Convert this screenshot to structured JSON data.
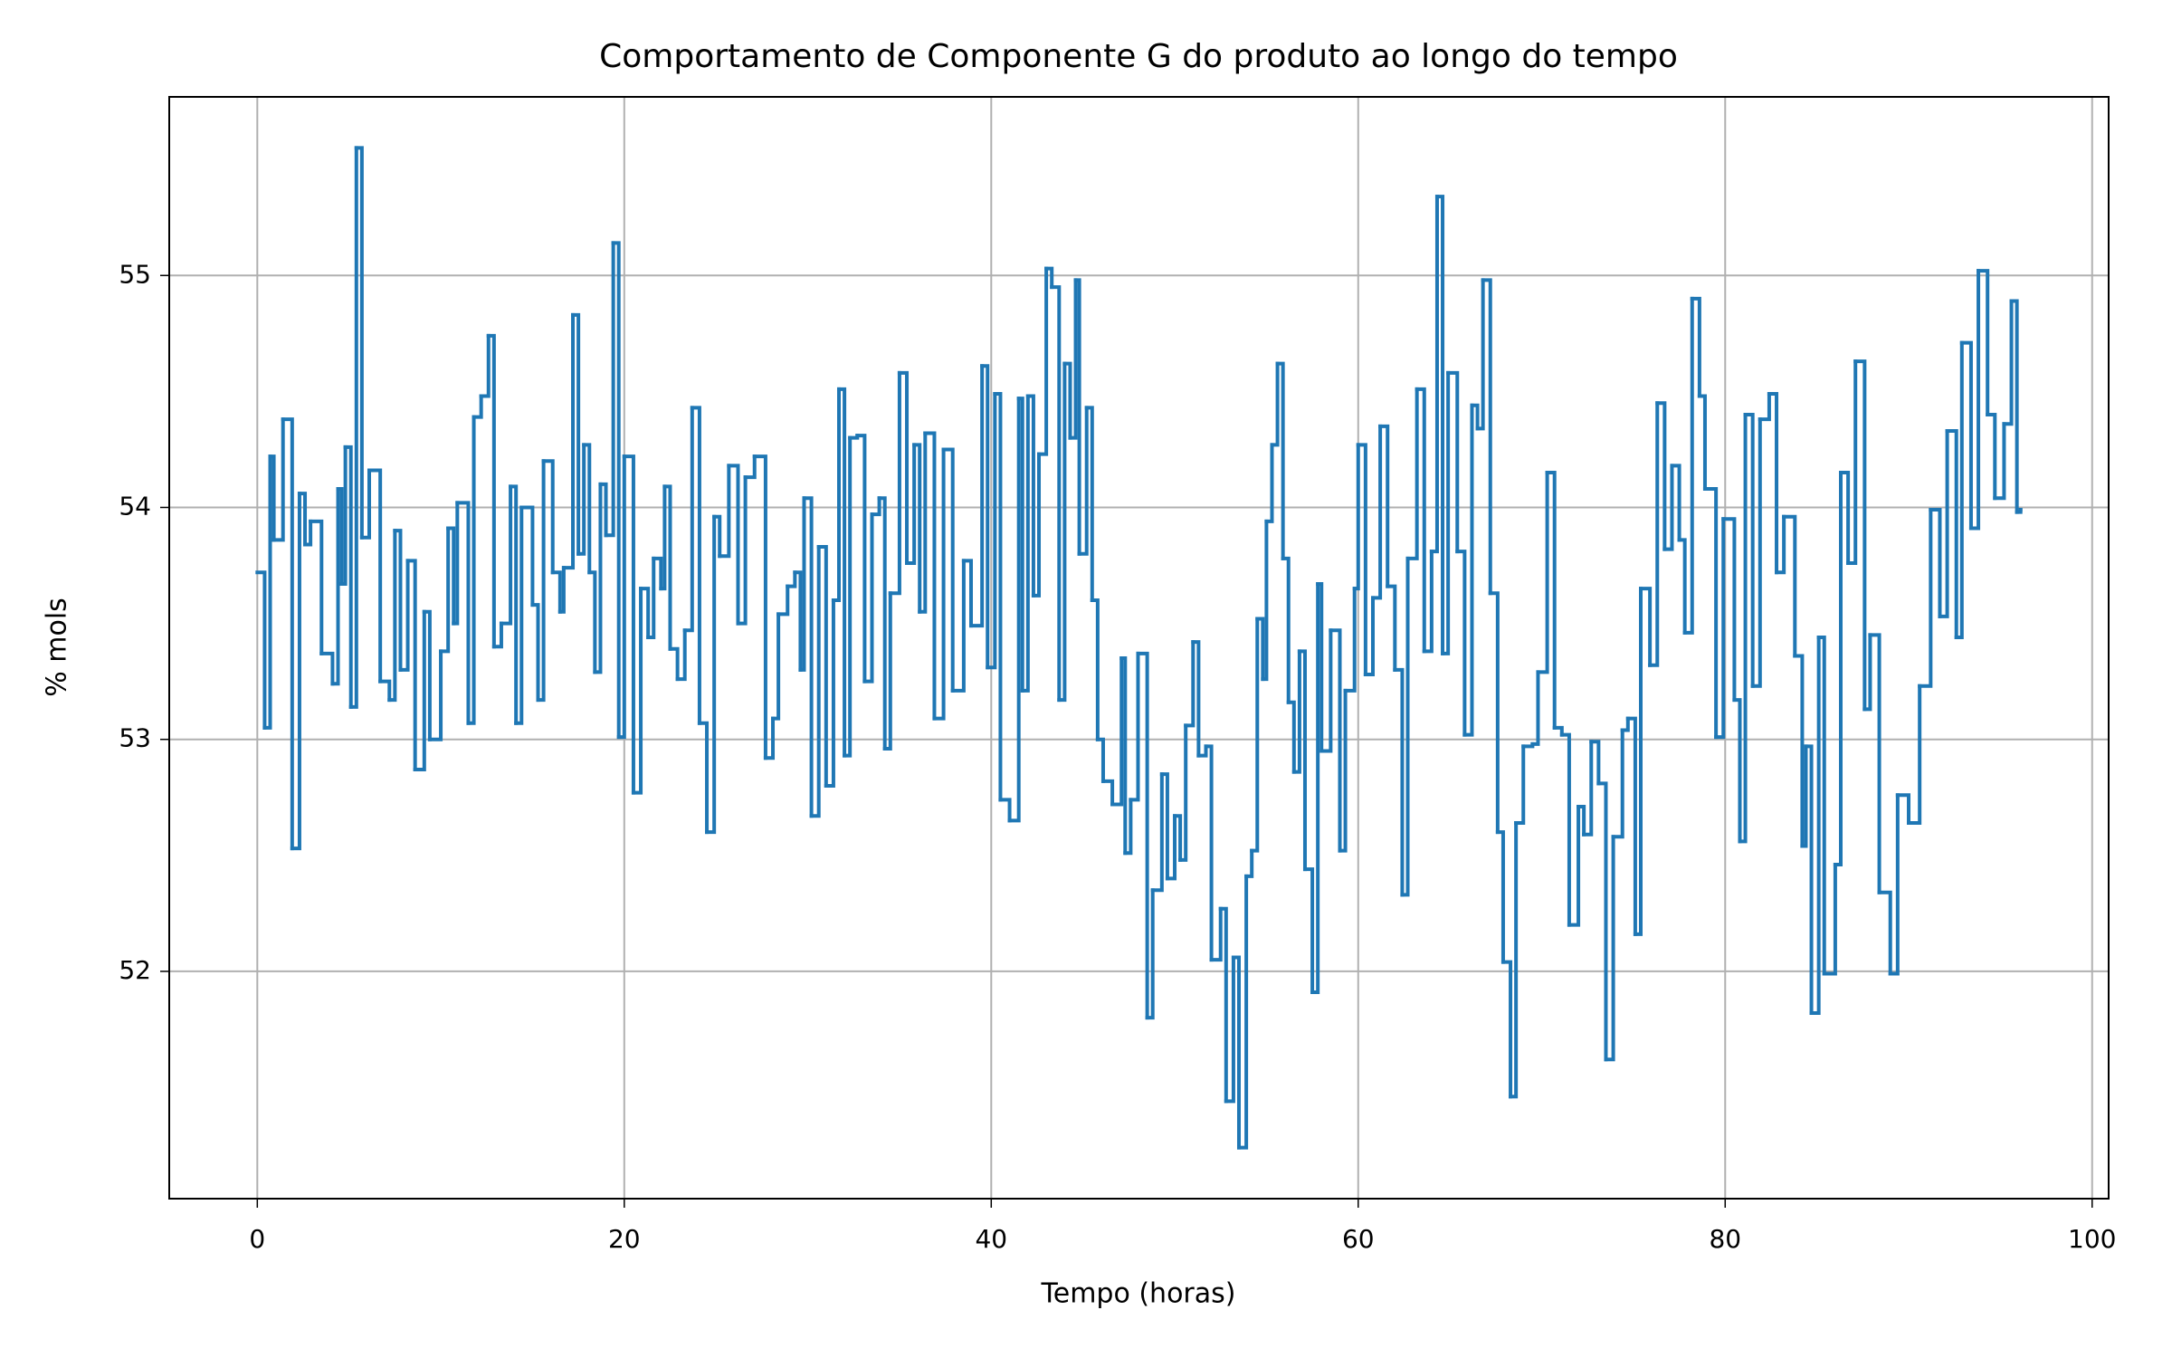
{
  "chart_data": {
    "type": "line",
    "drawstyle": "steps-post",
    "title": "Comportamento de Componente G do produto ao longo do tempo",
    "xlabel": "Tempo (horas)",
    "ylabel": "% mols",
    "color": "#1f77b4",
    "grid": true,
    "xlim": [
      -4.8,
      100.9
    ],
    "ylim": [
      51.02,
      55.77
    ],
    "xticks": [
      0,
      20,
      40,
      60,
      80,
      100
    ],
    "yticks": [
      52,
      53,
      54,
      55
    ],
    "x": [
      0,
      0.4,
      0.7,
      0.9,
      1.4,
      1.9,
      2.3,
      2.6,
      2.9,
      3.5,
      4.1,
      4.4,
      4.6,
      4.8,
      5.1,
      5.4,
      5.7,
      6.1,
      6.7,
      7.2,
      7.5,
      7.8,
      8.2,
      8.6,
      9.1,
      9.4,
      10.0,
      10.4,
      10.7,
      10.9,
      11.5,
      11.8,
      12.2,
      12.6,
      12.9,
      13.3,
      13.8,
      14.1,
      14.4,
      15.0,
      15.3,
      15.6,
      16.1,
      16.5,
      16.7,
      17.2,
      17.5,
      17.8,
      18.1,
      18.4,
      18.7,
      19.0,
      19.4,
      19.7,
      20.0,
      20.5,
      20.9,
      21.3,
      21.6,
      22.0,
      22.2,
      22.5,
      22.9,
      23.3,
      23.7,
      24.1,
      24.5,
      24.9,
      25.2,
      25.7,
      26.2,
      26.6,
      27.1,
      27.7,
      28.1,
      28.4,
      28.9,
      29.3,
      29.6,
      29.8,
      30.2,
      30.6,
      31.0,
      31.4,
      31.7,
      32.0,
      32.3,
      32.7,
      33.1,
      33.5,
      33.9,
      34.2,
      34.5,
      35.0,
      35.4,
      35.8,
      36.1,
      36.4,
      36.9,
      37.4,
      37.9,
      38.5,
      38.9,
      39.5,
      39.8,
      40.2,
      40.5,
      41.0,
      41.5,
      41.7,
      42.0,
      42.3,
      42.6,
      43.0,
      43.3,
      43.7,
      44.0,
      44.3,
      44.6,
      44.8,
      45.2,
      45.5,
      45.8,
      46.1,
      46.6,
      47.1,
      47.3,
      47.6,
      48.0,
      48.5,
      48.8,
      49.3,
      49.6,
      50.0,
      50.3,
      50.6,
      51.0,
      51.3,
      51.7,
      52.0,
      52.5,
      52.8,
      53.2,
      53.5,
      53.9,
      54.2,
      54.5,
      54.8,
      55.0,
      55.3,
      55.6,
      55.9,
      56.2,
      56.5,
      56.8,
      57.1,
      57.5,
      57.8,
      58.0,
      58.5,
      59.0,
      59.3,
      59.8,
      60.0,
      60.4,
      60.8,
      61.2,
      61.6,
      62.0,
      62.4,
      62.7,
      63.2,
      63.6,
      64.0,
      64.3,
      64.6,
      64.9,
      65.4,
      65.8,
      66.2,
      66.5,
      66.8,
      67.2,
      67.6,
      67.9,
      68.3,
      68.6,
      69.0,
      69.5,
      69.8,
      70.3,
      70.7,
      71.1,
      71.5,
      72.0,
      72.3,
      72.7,
      73.1,
      73.5,
      73.9,
      74.4,
      74.7,
      75.1,
      75.4,
      75.9,
      76.3,
      76.7,
      77.1,
      77.5,
      77.8,
      78.2,
      78.6,
      78.9,
      79.5,
      79.9,
      80.5,
      80.8,
      81.1,
      81.5,
      81.9,
      82.4,
      82.8,
      83.2,
      83.8,
      84.2,
      84.4,
      84.7,
      85.1,
      85.4,
      86.0,
      86.3,
      86.7,
      87.1,
      87.6,
      87.9,
      88.4,
      89.0,
      89.4,
      90.0,
      90.6,
      91.2,
      91.7,
      92.1,
      92.6,
      92.9,
      93.4,
      93.8,
      94.3,
      94.7,
      95.2,
      95.6,
      95.9,
      96.1
    ],
    "values": [
      53.72,
      53.05,
      54.22,
      53.86,
      54.38,
      52.53,
      54.06,
      53.84,
      53.94,
      53.37,
      53.24,
      54.08,
      53.67,
      54.26,
      53.14,
      55.55,
      53.87,
      54.16,
      53.25,
      53.17,
      53.9,
      53.3,
      53.77,
      52.87,
      53.55,
      53.0,
      53.38,
      53.91,
      53.5,
      54.02,
      53.07,
      54.39,
      54.48,
      54.74,
      53.4,
      53.5,
      54.09,
      53.07,
      54.0,
      53.58,
      53.17,
      54.2,
      53.72,
      53.55,
      53.74,
      54.83,
      53.8,
      54.27,
      53.72,
      53.29,
      54.1,
      53.88,
      55.14,
      53.01,
      54.22,
      52.77,
      53.65,
      53.44,
      53.78,
      53.65,
      54.09,
      53.39,
      53.26,
      53.47,
      54.43,
      53.07,
      52.6,
      53.96,
      53.79,
      54.18,
      53.5,
      54.13,
      54.22,
      52.92,
      53.09,
      53.54,
      53.66,
      53.72,
      53.3,
      54.04,
      52.67,
      53.83,
      52.8,
      53.6,
      54.51,
      52.93,
      54.3,
      54.31,
      53.25,
      53.97,
      54.04,
      52.96,
      53.63,
      54.58,
      53.76,
      54.27,
      53.55,
      54.32,
      53.09,
      54.25,
      53.21,
      53.77,
      53.49,
      54.61,
      53.31,
      54.49,
      52.74,
      52.65,
      54.47,
      53.21,
      54.48,
      53.62,
      54.23,
      55.03,
      54.95,
      53.17,
      54.62,
      54.3,
      54.98,
      53.8,
      54.43,
      53.6,
      53.0,
      52.82,
      52.72,
      53.35,
      52.51,
      52.74,
      53.37,
      51.8,
      52.35,
      52.85,
      52.4,
      52.67,
      52.48,
      53.06,
      53.42,
      52.93,
      52.97,
      52.05,
      52.27,
      51.44,
      52.06,
      51.24,
      52.41,
      52.52,
      53.52,
      53.26,
      53.94,
      54.27,
      54.62,
      53.78,
      53.16,
      52.86,
      53.38,
      52.44,
      51.91,
      53.67,
      52.95,
      53.47,
      52.52,
      53.21,
      53.65,
      54.27,
      53.28,
      53.61,
      54.35,
      53.66,
      53.3,
      52.33,
      53.78,
      54.51,
      53.38,
      53.81,
      55.34,
      53.37,
      54.58,
      53.81,
      53.02,
      54.44,
      54.34,
      54.98,
      53.63,
      52.6,
      52.04,
      51.46,
      52.64,
      52.97,
      52.98,
      53.29,
      54.15,
      53.05,
      53.02,
      52.2,
      52.71,
      52.59,
      52.99,
      52.81,
      51.62,
      52.58,
      53.04,
      53.09,
      52.16,
      53.65,
      53.32,
      54.45,
      53.82,
      54.18,
      53.86,
      53.46,
      54.9,
      54.48,
      54.08,
      53.01,
      53.95,
      53.17,
      52.56,
      54.4,
      53.23,
      54.38,
      54.49,
      53.72,
      53.96,
      53.36,
      52.54,
      52.97,
      51.82,
      53.44,
      51.99,
      52.46,
      54.15,
      53.76,
      54.63,
      53.13,
      53.45,
      52.34,
      51.99,
      52.76,
      52.64,
      53.23,
      53.99,
      53.53,
      54.33,
      53.44,
      54.71,
      53.91,
      55.02,
      54.4,
      54.04,
      54.36,
      54.89,
      53.98,
      53.99
    ]
  }
}
